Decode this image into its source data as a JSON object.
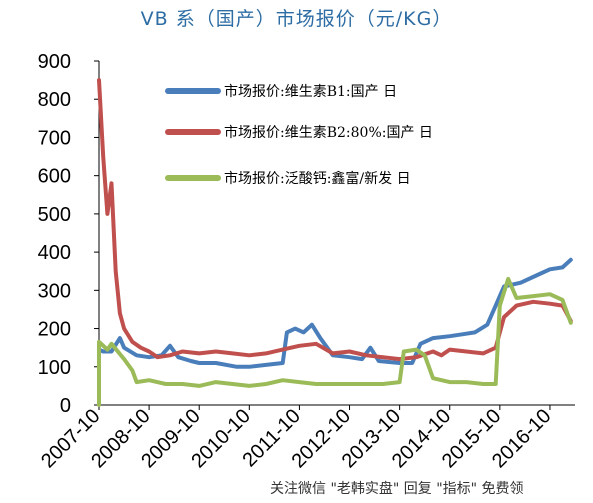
{
  "chart_data": {
    "type": "line",
    "title": "VB 系（国产）市场报价（元/KG）",
    "ylim": [
      0,
      900
    ],
    "yticks": [
      0,
      100,
      200,
      300,
      400,
      500,
      600,
      700,
      800,
      900
    ],
    "xlim": [
      "2007-10",
      "2017-04"
    ],
    "xticks": [
      "2007-10",
      "2008-10",
      "2009-10",
      "2010-10",
      "2011-10",
      "2012-10",
      "2013-10",
      "2014-10",
      "2015-10",
      "2016-10"
    ],
    "legend_position": "top-right",
    "grid": false,
    "series": [
      {
        "name": "市场报价:维生素B1:国产 日",
        "color": "#4a7ebb",
        "points": [
          [
            "2007-10",
            145
          ],
          [
            "2007-11",
            140
          ],
          [
            "2008-01",
            140
          ],
          [
            "2008-03",
            175
          ],
          [
            "2008-04",
            150
          ],
          [
            "2008-07",
            130
          ],
          [
            "2008-10",
            125
          ],
          [
            "2009-01",
            130
          ],
          [
            "2009-03",
            155
          ],
          [
            "2009-05",
            125
          ],
          [
            "2009-08",
            115
          ],
          [
            "2009-10",
            110
          ],
          [
            "2010-02",
            110
          ],
          [
            "2010-07",
            100
          ],
          [
            "2010-10",
            100
          ],
          [
            "2011-02",
            105
          ],
          [
            "2011-06",
            110
          ],
          [
            "2011-07",
            190
          ],
          [
            "2011-09",
            200
          ],
          [
            "2011-11",
            190
          ],
          [
            "2012-01",
            210
          ],
          [
            "2012-03",
            175
          ],
          [
            "2012-06",
            130
          ],
          [
            "2012-10",
            125
          ],
          [
            "2013-01",
            120
          ],
          [
            "2013-03",
            150
          ],
          [
            "2013-05",
            115
          ],
          [
            "2013-10",
            110
          ],
          [
            "2014-01",
            110
          ],
          [
            "2014-03",
            160
          ],
          [
            "2014-06",
            175
          ],
          [
            "2014-10",
            180
          ],
          [
            "2015-01",
            185
          ],
          [
            "2015-04",
            190
          ],
          [
            "2015-07",
            210
          ],
          [
            "2015-09",
            260
          ],
          [
            "2015-11",
            310
          ],
          [
            "2016-03",
            320
          ],
          [
            "2016-07",
            340
          ],
          [
            "2016-10",
            355
          ],
          [
            "2017-01",
            360
          ],
          [
            "2017-03",
            380
          ]
        ]
      },
      {
        "name": "市场报价:维生素B2:80%:国产 日",
        "color": "#c0504d",
        "points": [
          [
            "2007-10",
            850
          ],
          [
            "2007-11",
            650
          ],
          [
            "2007-12",
            500
          ],
          [
            "2008-01",
            580
          ],
          [
            "2008-02",
            350
          ],
          [
            "2008-03",
            240
          ],
          [
            "2008-04",
            200
          ],
          [
            "2008-06",
            165
          ],
          [
            "2008-08",
            150
          ],
          [
            "2008-10",
            140
          ],
          [
            "2008-12",
            125
          ],
          [
            "2009-03",
            130
          ],
          [
            "2009-06",
            140
          ],
          [
            "2009-10",
            135
          ],
          [
            "2010-02",
            140
          ],
          [
            "2010-06",
            135
          ],
          [
            "2010-10",
            130
          ],
          [
            "2011-02",
            135
          ],
          [
            "2011-06",
            145
          ],
          [
            "2011-10",
            155
          ],
          [
            "2012-02",
            160
          ],
          [
            "2012-06",
            135
          ],
          [
            "2012-10",
            140
          ],
          [
            "2013-02",
            130
          ],
          [
            "2013-06",
            125
          ],
          [
            "2013-10",
            120
          ],
          [
            "2014-02",
            125
          ],
          [
            "2014-06",
            140
          ],
          [
            "2014-08",
            130
          ],
          [
            "2014-10",
            145
          ],
          [
            "2015-02",
            140
          ],
          [
            "2015-06",
            135
          ],
          [
            "2015-09",
            150
          ],
          [
            "2015-11",
            230
          ],
          [
            "2016-02",
            260
          ],
          [
            "2016-06",
            270
          ],
          [
            "2016-10",
            265
          ],
          [
            "2017-01",
            260
          ],
          [
            "2017-03",
            220
          ]
        ]
      },
      {
        "name": "市场报价:泛酸钙:鑫富/新发 日",
        "color": "#9bbb59",
        "points": [
          [
            "2007-10",
            0
          ],
          [
            "2007-10",
            165
          ],
          [
            "2007-12",
            145
          ],
          [
            "2008-01",
            160
          ],
          [
            "2008-04",
            120
          ],
          [
            "2008-06",
            90
          ],
          [
            "2008-07",
            60
          ],
          [
            "2008-10",
            65
          ],
          [
            "2009-02",
            55
          ],
          [
            "2009-06",
            55
          ],
          [
            "2009-10",
            50
          ],
          [
            "2010-02",
            60
          ],
          [
            "2010-06",
            55
          ],
          [
            "2010-10",
            50
          ],
          [
            "2011-02",
            55
          ],
          [
            "2011-06",
            65
          ],
          [
            "2011-10",
            60
          ],
          [
            "2012-02",
            55
          ],
          [
            "2012-06",
            55
          ],
          [
            "2012-10",
            55
          ],
          [
            "2013-02",
            55
          ],
          [
            "2013-06",
            55
          ],
          [
            "2013-10",
            60
          ],
          [
            "2013-11",
            140
          ],
          [
            "2014-02",
            145
          ],
          [
            "2014-04",
            130
          ],
          [
            "2014-06",
            70
          ],
          [
            "2014-10",
            60
          ],
          [
            "2015-02",
            60
          ],
          [
            "2015-06",
            55
          ],
          [
            "2015-09",
            55
          ],
          [
            "2015-10",
            260
          ],
          [
            "2015-12",
            330
          ],
          [
            "2016-02",
            280
          ],
          [
            "2016-06",
            285
          ],
          [
            "2016-10",
            290
          ],
          [
            "2017-01",
            275
          ],
          [
            "2017-03",
            215
          ]
        ]
      }
    ]
  },
  "watermark": "关注微信 \"老韩实盘\" 回复 \"指标\" 免费领"
}
